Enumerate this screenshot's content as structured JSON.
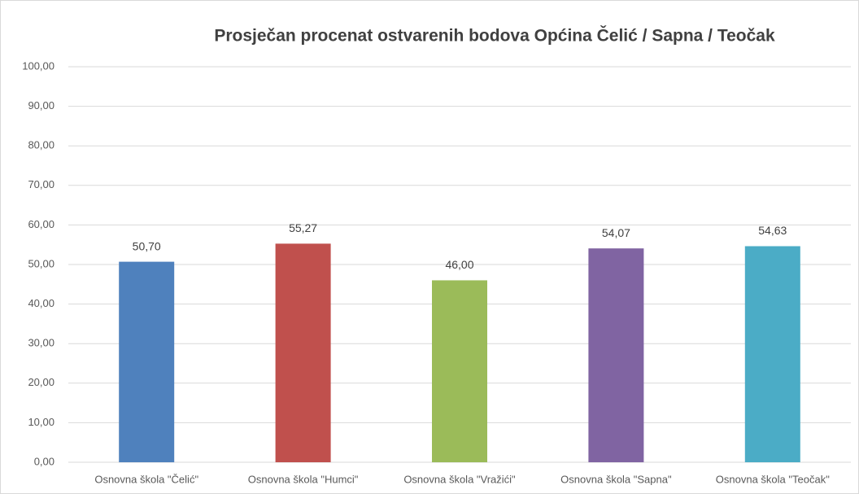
{
  "chart_data": {
    "type": "bar",
    "title": "Prosječan procenat ostvarenih bodova Općina Čelić / Sapna / Teočak",
    "categories": [
      "Osnovna škola \"Čelić\"",
      "Osnovna škola \"Humci\"",
      "Osnovna škola \"Vražići\"",
      "Osnovna škola \"Sapna\"",
      "Osnovna škola \"Teočak\""
    ],
    "values": [
      50.7,
      55.27,
      46.0,
      54.07,
      54.63
    ],
    "value_labels": [
      "50,70",
      "55,27",
      "46,00",
      "54,07",
      "54,63"
    ],
    "colors": [
      "#4f81bd",
      "#c0504d",
      "#9bbb59",
      "#8064a2",
      "#4bacc6"
    ],
    "ylim": [
      0,
      100
    ],
    "yticks": [
      {
        "value": 0,
        "label": "0,00"
      },
      {
        "value": 10,
        "label": "10,00"
      },
      {
        "value": 20,
        "label": "20,00"
      },
      {
        "value": 30,
        "label": "30,00"
      },
      {
        "value": 40,
        "label": "40,00"
      },
      {
        "value": 50,
        "label": "50,00"
      },
      {
        "value": 60,
        "label": "60,00"
      },
      {
        "value": 70,
        "label": "70,00"
      },
      {
        "value": 80,
        "label": "80,00"
      },
      {
        "value": 90,
        "label": "90,00"
      },
      {
        "value": 100,
        "label": "100,00"
      }
    ],
    "grid": true
  }
}
